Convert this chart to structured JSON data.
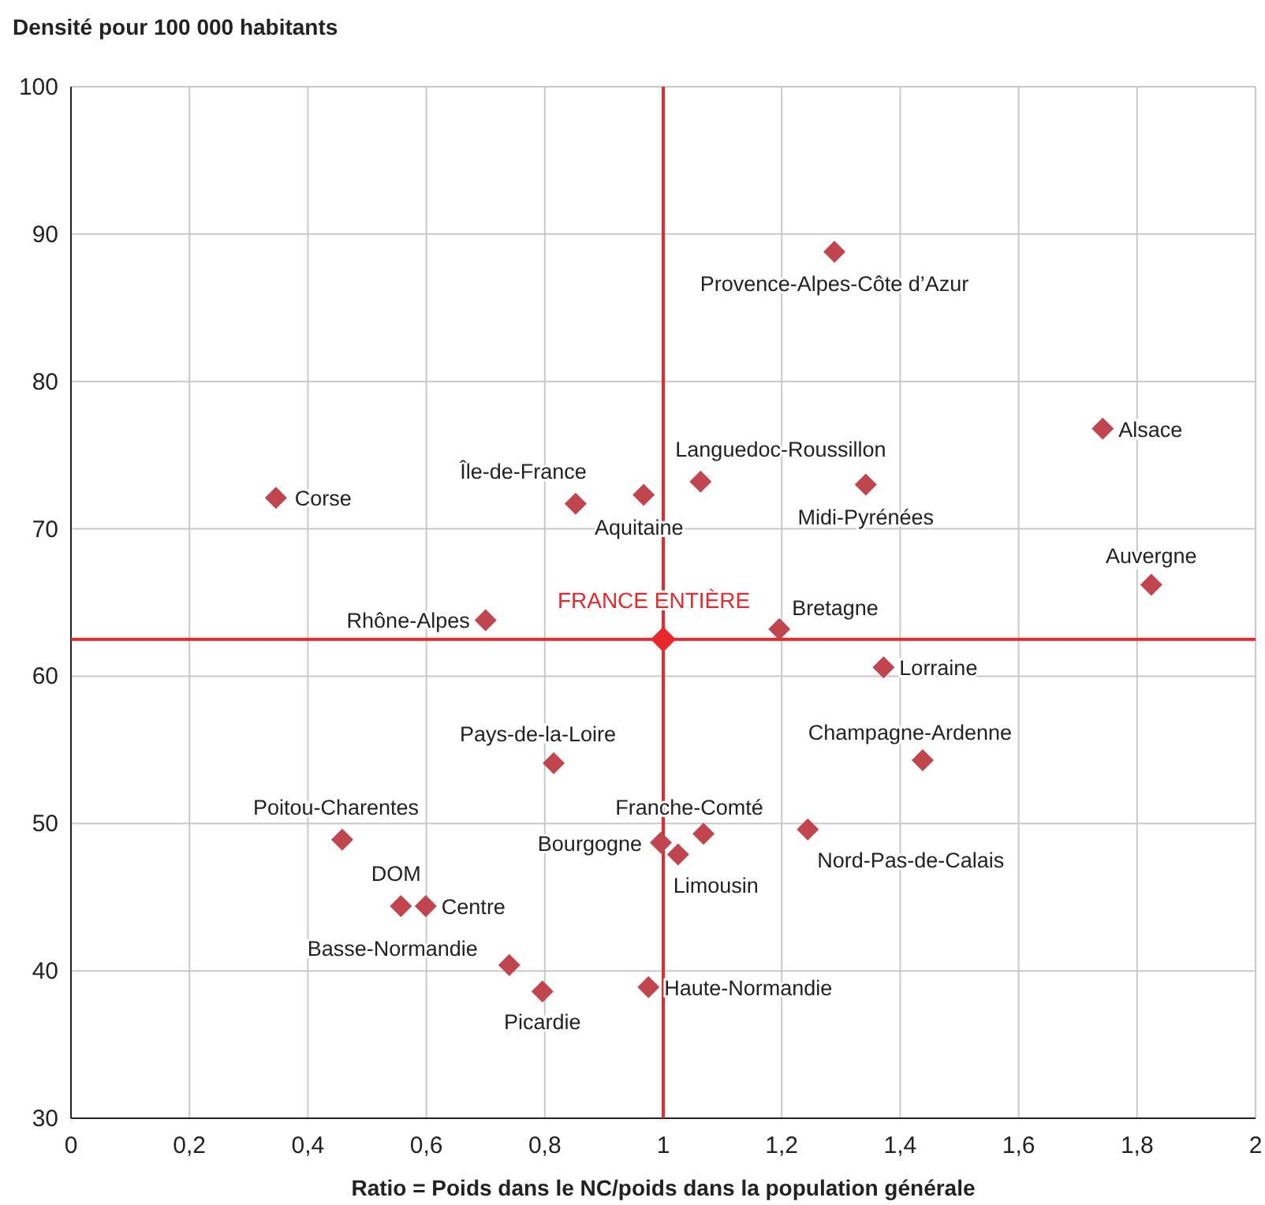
{
  "chart_data": {
    "type": "scatter",
    "ylabel": "Densité pour 100 000 habitants",
    "xlabel": "Ratio = Poids dans le NC/poids dans la population générale",
    "xlim": [
      0,
      2
    ],
    "xticks": [
      0,
      {
        "value": 0.2,
        "label": "0,2"
      },
      {
        "value": 0.4,
        "label": "0,4"
      },
      {
        "value": 0.6,
        "label": "0,6"
      },
      {
        "value": 0.8,
        "label": "0,8"
      },
      1,
      {
        "value": 1.2,
        "label": "1,2"
      },
      {
        "value": 1.4,
        "label": "1,4"
      },
      {
        "value": 1.6,
        "label": "1,6"
      },
      {
        "value": 1.8,
        "label": "1,8"
      },
      2
    ],
    "ylim": [
      30,
      100
    ],
    "yticks": [
      30,
      40,
      50,
      60,
      70,
      80,
      90,
      100
    ],
    "grid": true,
    "marker": "diamond",
    "series": [
      {
        "color": "#c0454f",
        "x": [
          1.289,
          1.742,
          0.346,
          0.852,
          0.967,
          1.063,
          1.342,
          1.824,
          0.7,
          1.196,
          1.372,
          0.815,
          1.438,
          0.458,
          1.068,
          0.996,
          1.025,
          1.244,
          0.557,
          0.599,
          0.74,
          0.796,
          0.975
        ],
        "values": [
          88.8,
          76.8,
          72.1,
          71.7,
          72.3,
          73.2,
          73.0,
          66.2,
          63.8,
          63.2,
          60.6,
          54.1,
          54.3,
          48.9,
          49.3,
          48.7,
          47.9,
          49.6,
          44.4,
          44.4,
          40.4,
          38.6,
          38.9
        ]
      },
      {
        "name": "FRANCE ENTIÈRE",
        "color": "#e8282b",
        "x": [
          1.0
        ],
        "values": [
          62.5
        ]
      }
    ],
    "ref_lines": [
      {
        "axis": "x",
        "value": 1,
        "color": "#e8282b"
      },
      {
        "axis": "y",
        "value": 62.5,
        "color": "#e8282b"
      }
    ],
    "annotations": [
      {
        "text": "Provence-Alpes-Côte d’Azur",
        "x": 1.289,
        "y": 88.8
      },
      {
        "text": "Alsace",
        "x": 1.742,
        "y": 76.8
      },
      {
        "text": "Corse",
        "x": 0.346,
        "y": 72.1
      },
      {
        "text": "Île-de-France",
        "x": 0.852,
        "y": 71.7
      },
      {
        "text": "Aquitaine",
        "x": 0.967,
        "y": 72.3
      },
      {
        "text": "Languedoc-Roussillon",
        "x": 1.063,
        "y": 73.2
      },
      {
        "text": "Midi-Pyrénées",
        "x": 1.342,
        "y": 73.0
      },
      {
        "text": "Auvergne",
        "x": 1.824,
        "y": 66.2
      },
      {
        "text": "Rhône-Alpes",
        "x": 0.7,
        "y": 63.8
      },
      {
        "text": "Bretagne",
        "x": 1.196,
        "y": 63.2
      },
      {
        "text": "Lorraine",
        "x": 1.372,
        "y": 60.6
      },
      {
        "text": "Pays-de-la-Loire",
        "x": 0.815,
        "y": 54.1
      },
      {
        "text": "Champagne-Ardenne",
        "x": 1.438,
        "y": 54.3
      },
      {
        "text": "Poitou-Charentes",
        "x": 0.458,
        "y": 48.9
      },
      {
        "text": "Franche-Comté",
        "x": 1.068,
        "y": 49.3
      },
      {
        "text": "Bourgogne",
        "x": 0.996,
        "y": 48.7
      },
      {
        "text": "Limousin",
        "x": 1.025,
        "y": 47.9
      },
      {
        "text": "Nord-Pas-de-Calais",
        "x": 1.244,
        "y": 49.6
      },
      {
        "text": "DOM",
        "x": 0.557,
        "y": 44.4
      },
      {
        "text": "Centre",
        "x": 0.599,
        "y": 44.4
      },
      {
        "text": "Basse-Normandie",
        "x": 0.74,
        "y": 40.4
      },
      {
        "text": "Picardie",
        "x": 0.796,
        "y": 38.6
      },
      {
        "text": "Haute-Normandie",
        "x": 0.975,
        "y": 38.9
      }
    ]
  }
}
